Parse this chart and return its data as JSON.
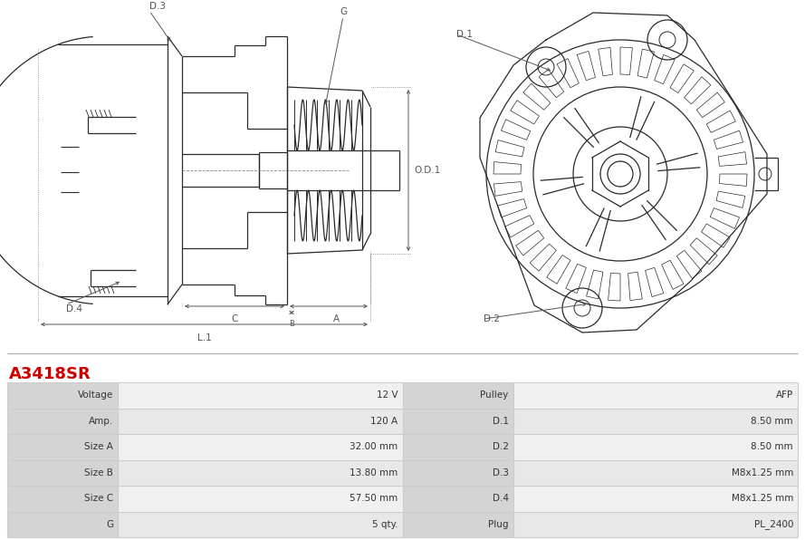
{
  "title": "A3418SR",
  "title_color": "#cc0000",
  "bg_color": "#ffffff",
  "table_label_bg": "#d4d4d4",
  "table_value_bg1": "#f0f0f0",
  "table_value_bg2": "#e8e8e8",
  "table_border_color": "#cccccc",
  "table_data": [
    [
      "Voltage",
      "12 V",
      "Pulley",
      "AFP"
    ],
    [
      "Amp.",
      "120 A",
      "D.1",
      "8.50 mm"
    ],
    [
      "Size A",
      "32.00 mm",
      "D.2",
      "8.50 mm"
    ],
    [
      "Size B",
      "13.80 mm",
      "D.3",
      "M8x1.25 mm"
    ],
    [
      "Size C",
      "57.50 mm",
      "D.4",
      "M8x1.25 mm"
    ],
    [
      "G",
      "5 qty.",
      "Plug",
      "PL_2400"
    ]
  ],
  "dim_color": "#555555",
  "line_color": "#2a2a2a",
  "lw": 0.9
}
